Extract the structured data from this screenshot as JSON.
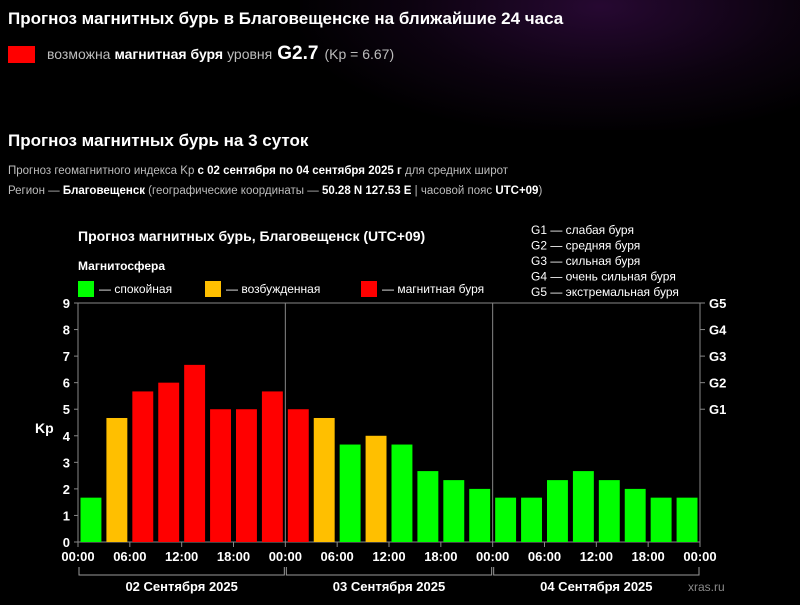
{
  "header": {
    "title": "Прогноз магнитных бурь в Благовещенске на ближайшие 24 часа",
    "status": {
      "prefix": "возможна",
      "kind": "магнитная буря",
      "level_label": "уровня",
      "level": "G2.7",
      "kp": "(Kp = 6.67)",
      "color": "#ff0000"
    }
  },
  "forecast": {
    "title": "Прогноз магнитных бурь на 3 суток",
    "line1": {
      "before": "Прогноз геомагнитного индекса Kp",
      "period": "с 02 сентября по 04 сентября 2025 г",
      "after": "для средних широт"
    },
    "line2": {
      "before": "Регион —",
      "city": "Благовещенск",
      "coords_label": "(географические координаты —",
      "coords": "50.28 N 127.53 E",
      "tz_label": "| часовой пояс",
      "tz": "UTC+09",
      "close": ")"
    }
  },
  "watermark": "xras.ru",
  "chart_data": {
    "type": "bar",
    "title": "Прогноз магнитных бурь, Благовещенск (UTC+09)",
    "legend_title": "Магнитосфера",
    "legend": [
      {
        "label": "— спокойная",
        "color": "#00ff00"
      },
      {
        "label": "— возбужденная",
        "color": "#ffbf00"
      },
      {
        "label": "— магнитная буря",
        "color": "#ff0000"
      }
    ],
    "g_scale": [
      {
        "code": "G1",
        "label": "G1 — слабая буря",
        "kp": 5
      },
      {
        "code": "G2",
        "label": "G2 — средняя буря",
        "kp": 6
      },
      {
        "code": "G3",
        "label": "G3 — сильная буря",
        "kp": 7
      },
      {
        "code": "G4",
        "label": "G4 — очень сильная буря",
        "kp": 8
      },
      {
        "code": "G5",
        "label": "G5 — экстремальная буря",
        "kp": 9
      }
    ],
    "ylabel": "Kp",
    "ylim": [
      0,
      9
    ],
    "yticks": [
      0,
      1,
      2,
      3,
      4,
      5,
      6,
      7,
      8,
      9
    ],
    "x_tick_labels": [
      "00:00",
      "06:00",
      "12:00",
      "18:00",
      "00:00",
      "06:00",
      "12:00",
      "18:00",
      "00:00",
      "06:00",
      "12:00",
      "18:00",
      "00:00"
    ],
    "days": [
      "02 Сентября 2025",
      "03 Сентября 2025",
      "04 Сентября 2025"
    ],
    "bars_per_day": 8,
    "values": [
      1.67,
      4.67,
      5.67,
      6.0,
      6.67,
      5.0,
      5.0,
      5.67,
      5.0,
      4.67,
      3.67,
      4.0,
      3.67,
      2.67,
      2.33,
      2.0,
      1.67,
      1.67,
      2.33,
      2.67,
      2.33,
      2.0,
      1.67,
      1.67
    ],
    "categories": [
      "quiet",
      "active",
      "storm",
      "storm",
      "storm",
      "storm",
      "storm",
      "storm",
      "storm",
      "active",
      "quiet",
      "active",
      "quiet",
      "quiet",
      "quiet",
      "quiet",
      "quiet",
      "quiet",
      "quiet",
      "quiet",
      "quiet",
      "quiet",
      "quiet",
      "quiet"
    ],
    "colors": {
      "quiet": "#00ff00",
      "active": "#ffbf00",
      "storm": "#ff0000"
    }
  }
}
